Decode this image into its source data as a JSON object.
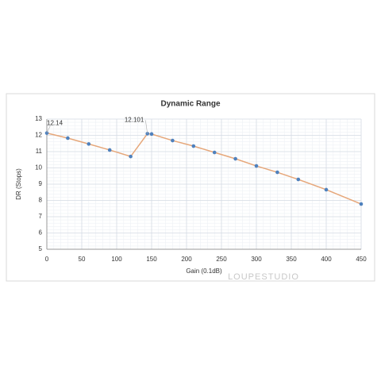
{
  "chart_data": {
    "type": "line",
    "title": "Dynamic Range",
    "x_label": "Gain (0.1dB)",
    "y_label": "DR (Stops)",
    "watermark": "LOUPESTUDIO",
    "x": [
      0,
      30,
      60,
      90,
      120,
      144,
      150,
      180,
      210,
      240,
      270,
      300,
      330,
      360,
      400,
      450
    ],
    "series": [
      {
        "name": "Dynamic Range",
        "color": "#e6a77a",
        "marker_color": "#4f81bd",
        "values": [
          12.14,
          11.83,
          11.47,
          11.1,
          10.7,
          12.101,
          12.08,
          11.68,
          11.34,
          10.95,
          10.56,
          10.12,
          9.73,
          9.29,
          8.66,
          7.78
        ]
      }
    ],
    "xlim": [
      0,
      450
    ],
    "xticks": [
      0,
      50,
      100,
      150,
      200,
      250,
      300,
      350,
      400,
      450
    ],
    "ylim": [
      5,
      13
    ],
    "yticks": [
      5,
      6,
      7,
      8,
      9,
      10,
      11,
      12,
      13
    ],
    "grid": true,
    "minor_grid": true
  }
}
